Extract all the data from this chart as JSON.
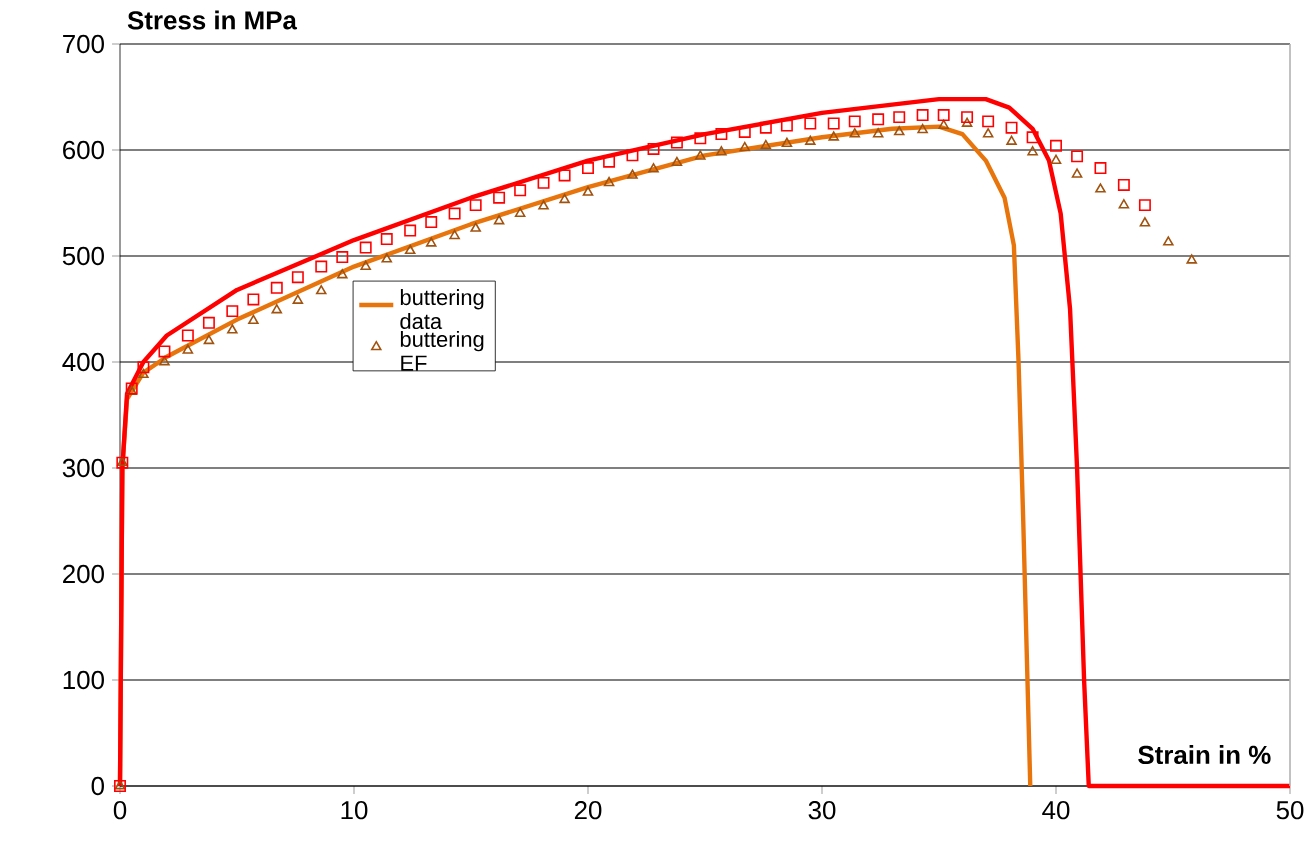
{
  "chart_data": {
    "type": "line",
    "xlabel": "Strain in %",
    "ylabel": "Stress in MPa",
    "xlim": [
      0,
      50
    ],
    "ylim": [
      0,
      700
    ],
    "xticks": [
      0,
      10,
      20,
      30,
      40,
      50
    ],
    "yticks": [
      0,
      100,
      200,
      300,
      400,
      500,
      600,
      700
    ],
    "grid": "y",
    "legend": "center",
    "series": [
      {
        "name": "buttering data",
        "marker": "none",
        "color": "#e8740c",
        "x": [
          0,
          0.1,
          0.3,
          1,
          2,
          5,
          10,
          15,
          20,
          25,
          30,
          33,
          35,
          36,
          37,
          37.8,
          38.2,
          38.4,
          38.6,
          38.9
        ],
        "values": [
          0,
          300,
          365,
          390,
          405,
          440,
          490,
          530,
          565,
          595,
          612,
          620,
          622,
          615,
          590,
          555,
          510,
          400,
          250,
          0
        ]
      },
      {
        "name": "buttering EF",
        "type": "scatter",
        "marker": "triangle",
        "color": "#a0520f",
        "x": [
          0,
          0.1,
          0.5,
          1.0,
          1.9,
          2.9,
          3.8,
          4.8,
          5.7,
          6.7,
          7.6,
          8.6,
          9.5,
          10.5,
          11.4,
          12.4,
          13.3,
          14.3,
          15.2,
          16.2,
          17.1,
          18.1,
          19.0,
          20.0,
          20.9,
          21.9,
          22.8,
          23.8,
          24.8,
          25.7,
          26.7,
          27.6,
          28.5,
          29.5,
          30.5,
          31.4,
          32.4,
          33.3,
          34.3,
          35.2,
          36.2,
          37.1,
          38.1,
          39.0,
          40.0,
          40.9,
          41.9,
          42.9,
          43.8,
          44.8,
          45.8
        ],
        "values": [
          0,
          305,
          372,
          388,
          400,
          411,
          420,
          430,
          439,
          449,
          458,
          467,
          482,
          490,
          497,
          505,
          512,
          519,
          526,
          533,
          540,
          547,
          553,
          560,
          569,
          576,
          582,
          588,
          594,
          598,
          602,
          604,
          606,
          608,
          612,
          615,
          615,
          617,
          619,
          623,
          625,
          615,
          608,
          598,
          590,
          577,
          563,
          548,
          531,
          513,
          496
        ]
      },
      {
        "marker": "none",
        "color": "#ff0000",
        "x": [
          0,
          0.1,
          0.3,
          1,
          2,
          5,
          10,
          15,
          20,
          25,
          30,
          35,
          37,
          38,
          39,
          39.7,
          40.2,
          40.6,
          40.9,
          41.2,
          41.4,
          50
        ],
        "values": [
          0,
          300,
          370,
          400,
          425,
          468,
          515,
          555,
          590,
          615,
          635,
          648,
          648,
          640,
          620,
          590,
          540,
          450,
          300,
          100,
          0,
          0
        ]
      },
      {
        "type": "scatter",
        "marker": "square",
        "color": "#ff0000",
        "x": [
          0,
          0.1,
          0.5,
          1.0,
          1.9,
          2.9,
          3.8,
          4.8,
          5.7,
          6.7,
          7.6,
          8.6,
          9.5,
          10.5,
          11.4,
          12.4,
          13.3,
          14.3,
          15.2,
          16.2,
          17.1,
          18.1,
          19.0,
          20.0,
          20.9,
          21.9,
          22.8,
          23.8,
          24.8,
          25.7,
          26.7,
          27.6,
          28.5,
          29.5,
          30.5,
          31.4,
          32.4,
          33.3,
          34.3,
          35.2,
          36.2,
          37.1,
          38.1,
          39.0,
          40.0,
          40.9,
          41.9,
          42.9,
          43.8
        ],
        "values": [
          0,
          305,
          375,
          395,
          410,
          425,
          437,
          448,
          459,
          470,
          480,
          490,
          499,
          508,
          516,
          524,
          532,
          540,
          548,
          555,
          562,
          569,
          576,
          583,
          589,
          595,
          601,
          607,
          611,
          615,
          617,
          621,
          623,
          625,
          625,
          627,
          629,
          631,
          633,
          633,
          631,
          627,
          621,
          612,
          604,
          594,
          583,
          567,
          548
        ]
      }
    ]
  }
}
